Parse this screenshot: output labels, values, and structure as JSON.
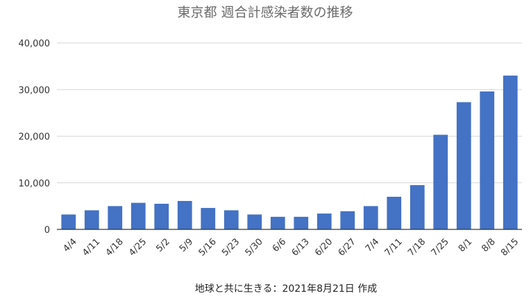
{
  "chart_data": {
    "type": "bar",
    "title": "東京都 週合計感染者数の推移",
    "categories": [
      "4/4",
      "4/11",
      "4/18",
      "4/25",
      "5/2",
      "5/9",
      "5/16",
      "5/23",
      "5/30",
      "6/6",
      "6/13",
      "6/20",
      "6/27",
      "7/4",
      "7/11",
      "7/18",
      "7/25",
      "8/1",
      "8/8",
      "8/15"
    ],
    "values": [
      3200,
      4100,
      5000,
      5700,
      5500,
      6100,
      4600,
      4100,
      3200,
      2700,
      2700,
      3400,
      3900,
      5000,
      7000,
      9500,
      20300,
      27300,
      29600,
      33000
    ],
    "ylim": [
      0,
      40000
    ],
    "yticks": [
      0,
      10000,
      20000,
      30000,
      40000
    ],
    "ytick_labels": [
      "0",
      "10,000",
      "20,000",
      "30,000",
      "40,000"
    ],
    "bar_color": "#4472c4",
    "grid": true,
    "legend": "none",
    "note": "地球と共に生きる：2021年8月21日 作成"
  }
}
